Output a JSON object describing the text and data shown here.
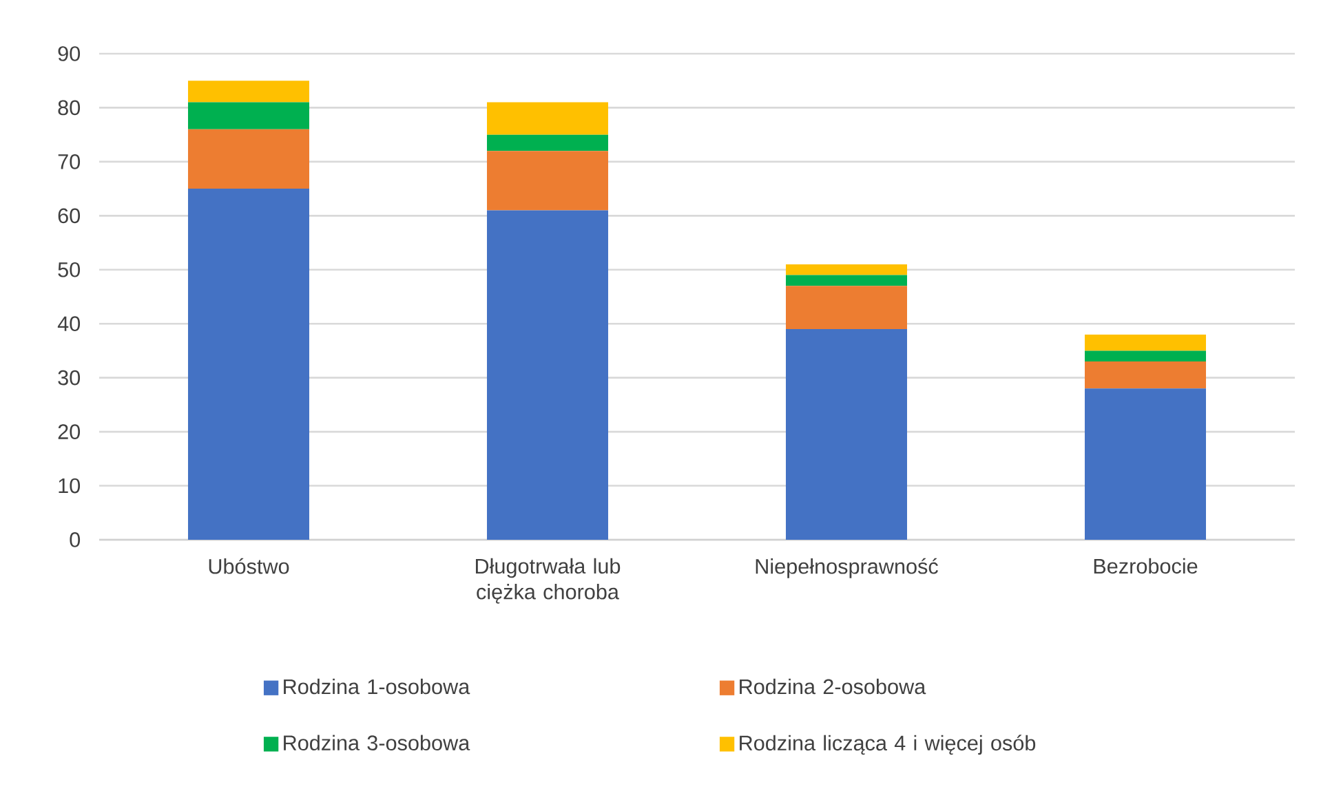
{
  "chart_data": {
    "type": "bar",
    "stacked": true,
    "categories": [
      "Ubóstwo",
      "Długotrwała lub ciężka choroba",
      "Niepełnosprawność",
      "Bezrobocie"
    ],
    "series": [
      {
        "name": "Rodzina 1-osobowa",
        "color": "#4472c4",
        "values": [
          65,
          61,
          39,
          28
        ]
      },
      {
        "name": "Rodzina 2-osobowa",
        "color": "#ed7d31",
        "values": [
          11,
          11,
          8,
          5
        ]
      },
      {
        "name": "Rodzina 3-osobowa",
        "color": "#00b050",
        "values": [
          5,
          3,
          2,
          2
        ]
      },
      {
        "name": "Rodzina licząca 4 i więcej osób",
        "color": "#ffc000",
        "values": [
          4,
          6,
          2,
          3
        ]
      }
    ],
    "ylim": [
      0,
      90
    ],
    "yticks": [
      0,
      10,
      20,
      30,
      40,
      50,
      60,
      70,
      80,
      90
    ],
    "grid": "y",
    "legend": "bottom"
  }
}
